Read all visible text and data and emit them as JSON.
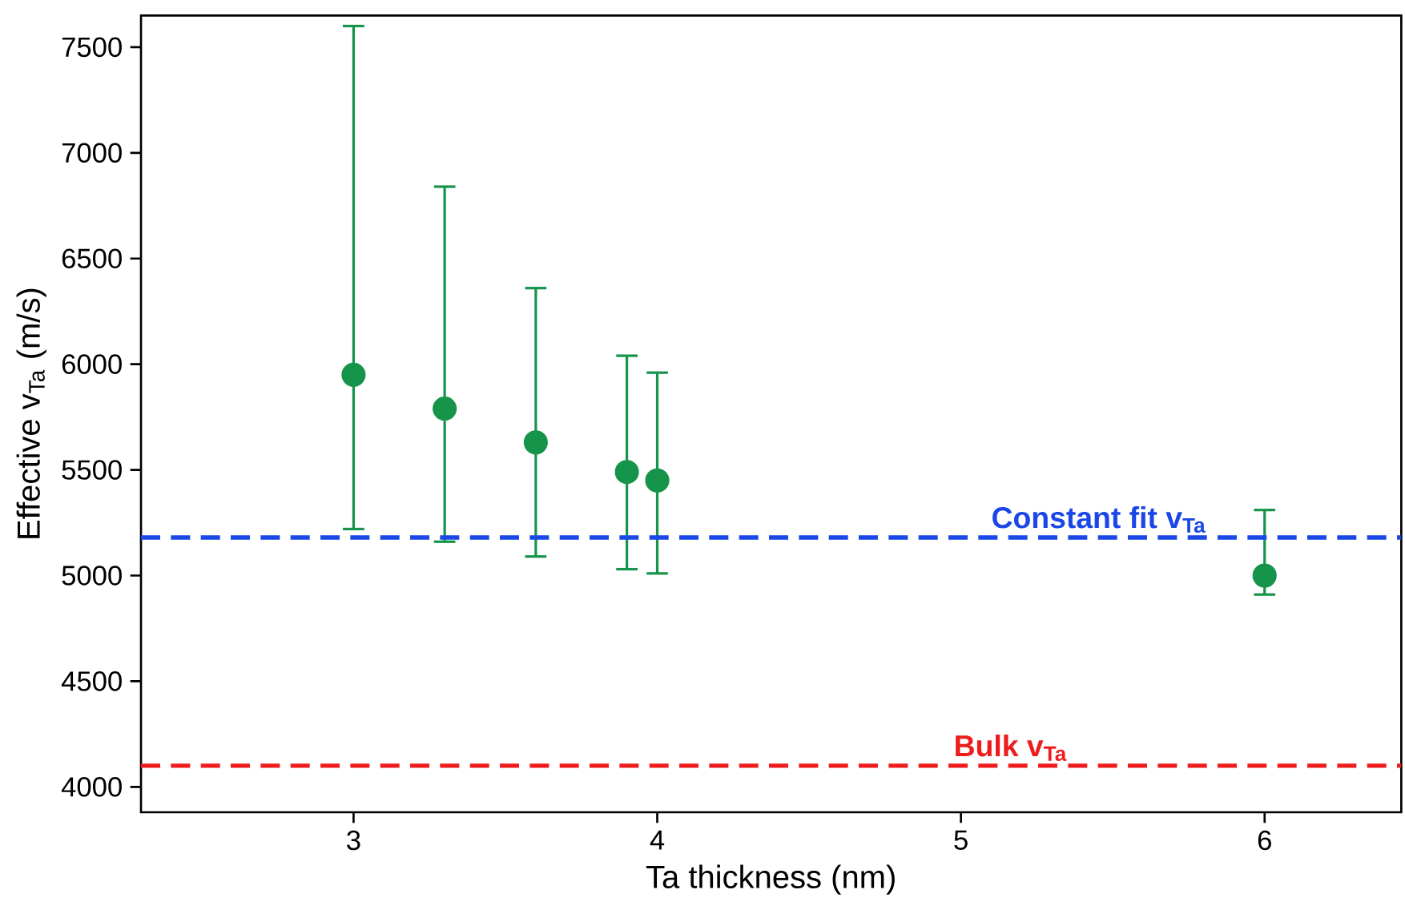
{
  "chart_data": {
    "type": "scatter",
    "xlabel": "Ta thickness (nm)",
    "ylabel": "Effective v$_{Ta}$ (m/s)",
    "xlim": [
      2.3,
      6.45
    ],
    "ylim": [
      3880,
      7650
    ],
    "xticks": [
      3,
      4,
      5,
      6
    ],
    "yticks": [
      4000,
      4500,
      5000,
      5500,
      6000,
      6500,
      7000,
      7500
    ],
    "marker": "circle",
    "grid": false,
    "series": [
      {
        "color": "#15944a",
        "x": [
          3,
          3.3,
          3.6,
          3.9,
          4.0,
          6.0
        ],
        "values": [
          5950,
          5790,
          5630,
          5490,
          5450,
          5000
        ],
        "errors": [
          [
            5220,
            7600
          ],
          [
            5160,
            6840
          ],
          [
            5090,
            6360
          ],
          [
            5030,
            6040
          ],
          [
            5010,
            5960
          ],
          [
            4910,
            5310
          ]
        ]
      }
    ],
    "ref_lines": [
      {
        "axis": "y",
        "value": 5180,
        "label": "Constant fit v$_{Ta}$",
        "color": "#1a47e6",
        "line_style": "dashed"
      },
      {
        "axis": "y",
        "value": 4100,
        "label": "Bulk v$_{Ta}$",
        "color": "#ee1c1c",
        "line_style": "dashed"
      }
    ]
  }
}
